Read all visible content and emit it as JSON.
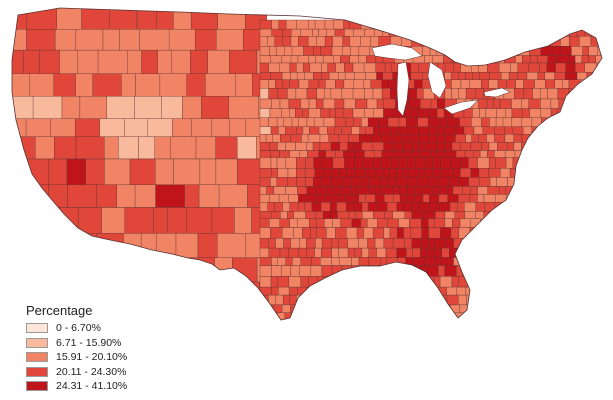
{
  "legend": {
    "title": "Percentage",
    "classes": [
      {
        "label": "0 - 6.70%",
        "color": "#fde5d8"
      },
      {
        "label": "6.71 - 15.90%",
        "color": "#f8b99c"
      },
      {
        "label": "15.91 - 20.10%",
        "color": "#f08465"
      },
      {
        "label": "20.11 - 24.30%",
        "color": "#e0473a"
      },
      {
        "label": "24.31 - 41.10%",
        "color": "#c0141b"
      }
    ]
  },
  "map": {
    "region": "Contiguous United States",
    "unit": "county",
    "boundary_color": "#5a3030"
  }
}
